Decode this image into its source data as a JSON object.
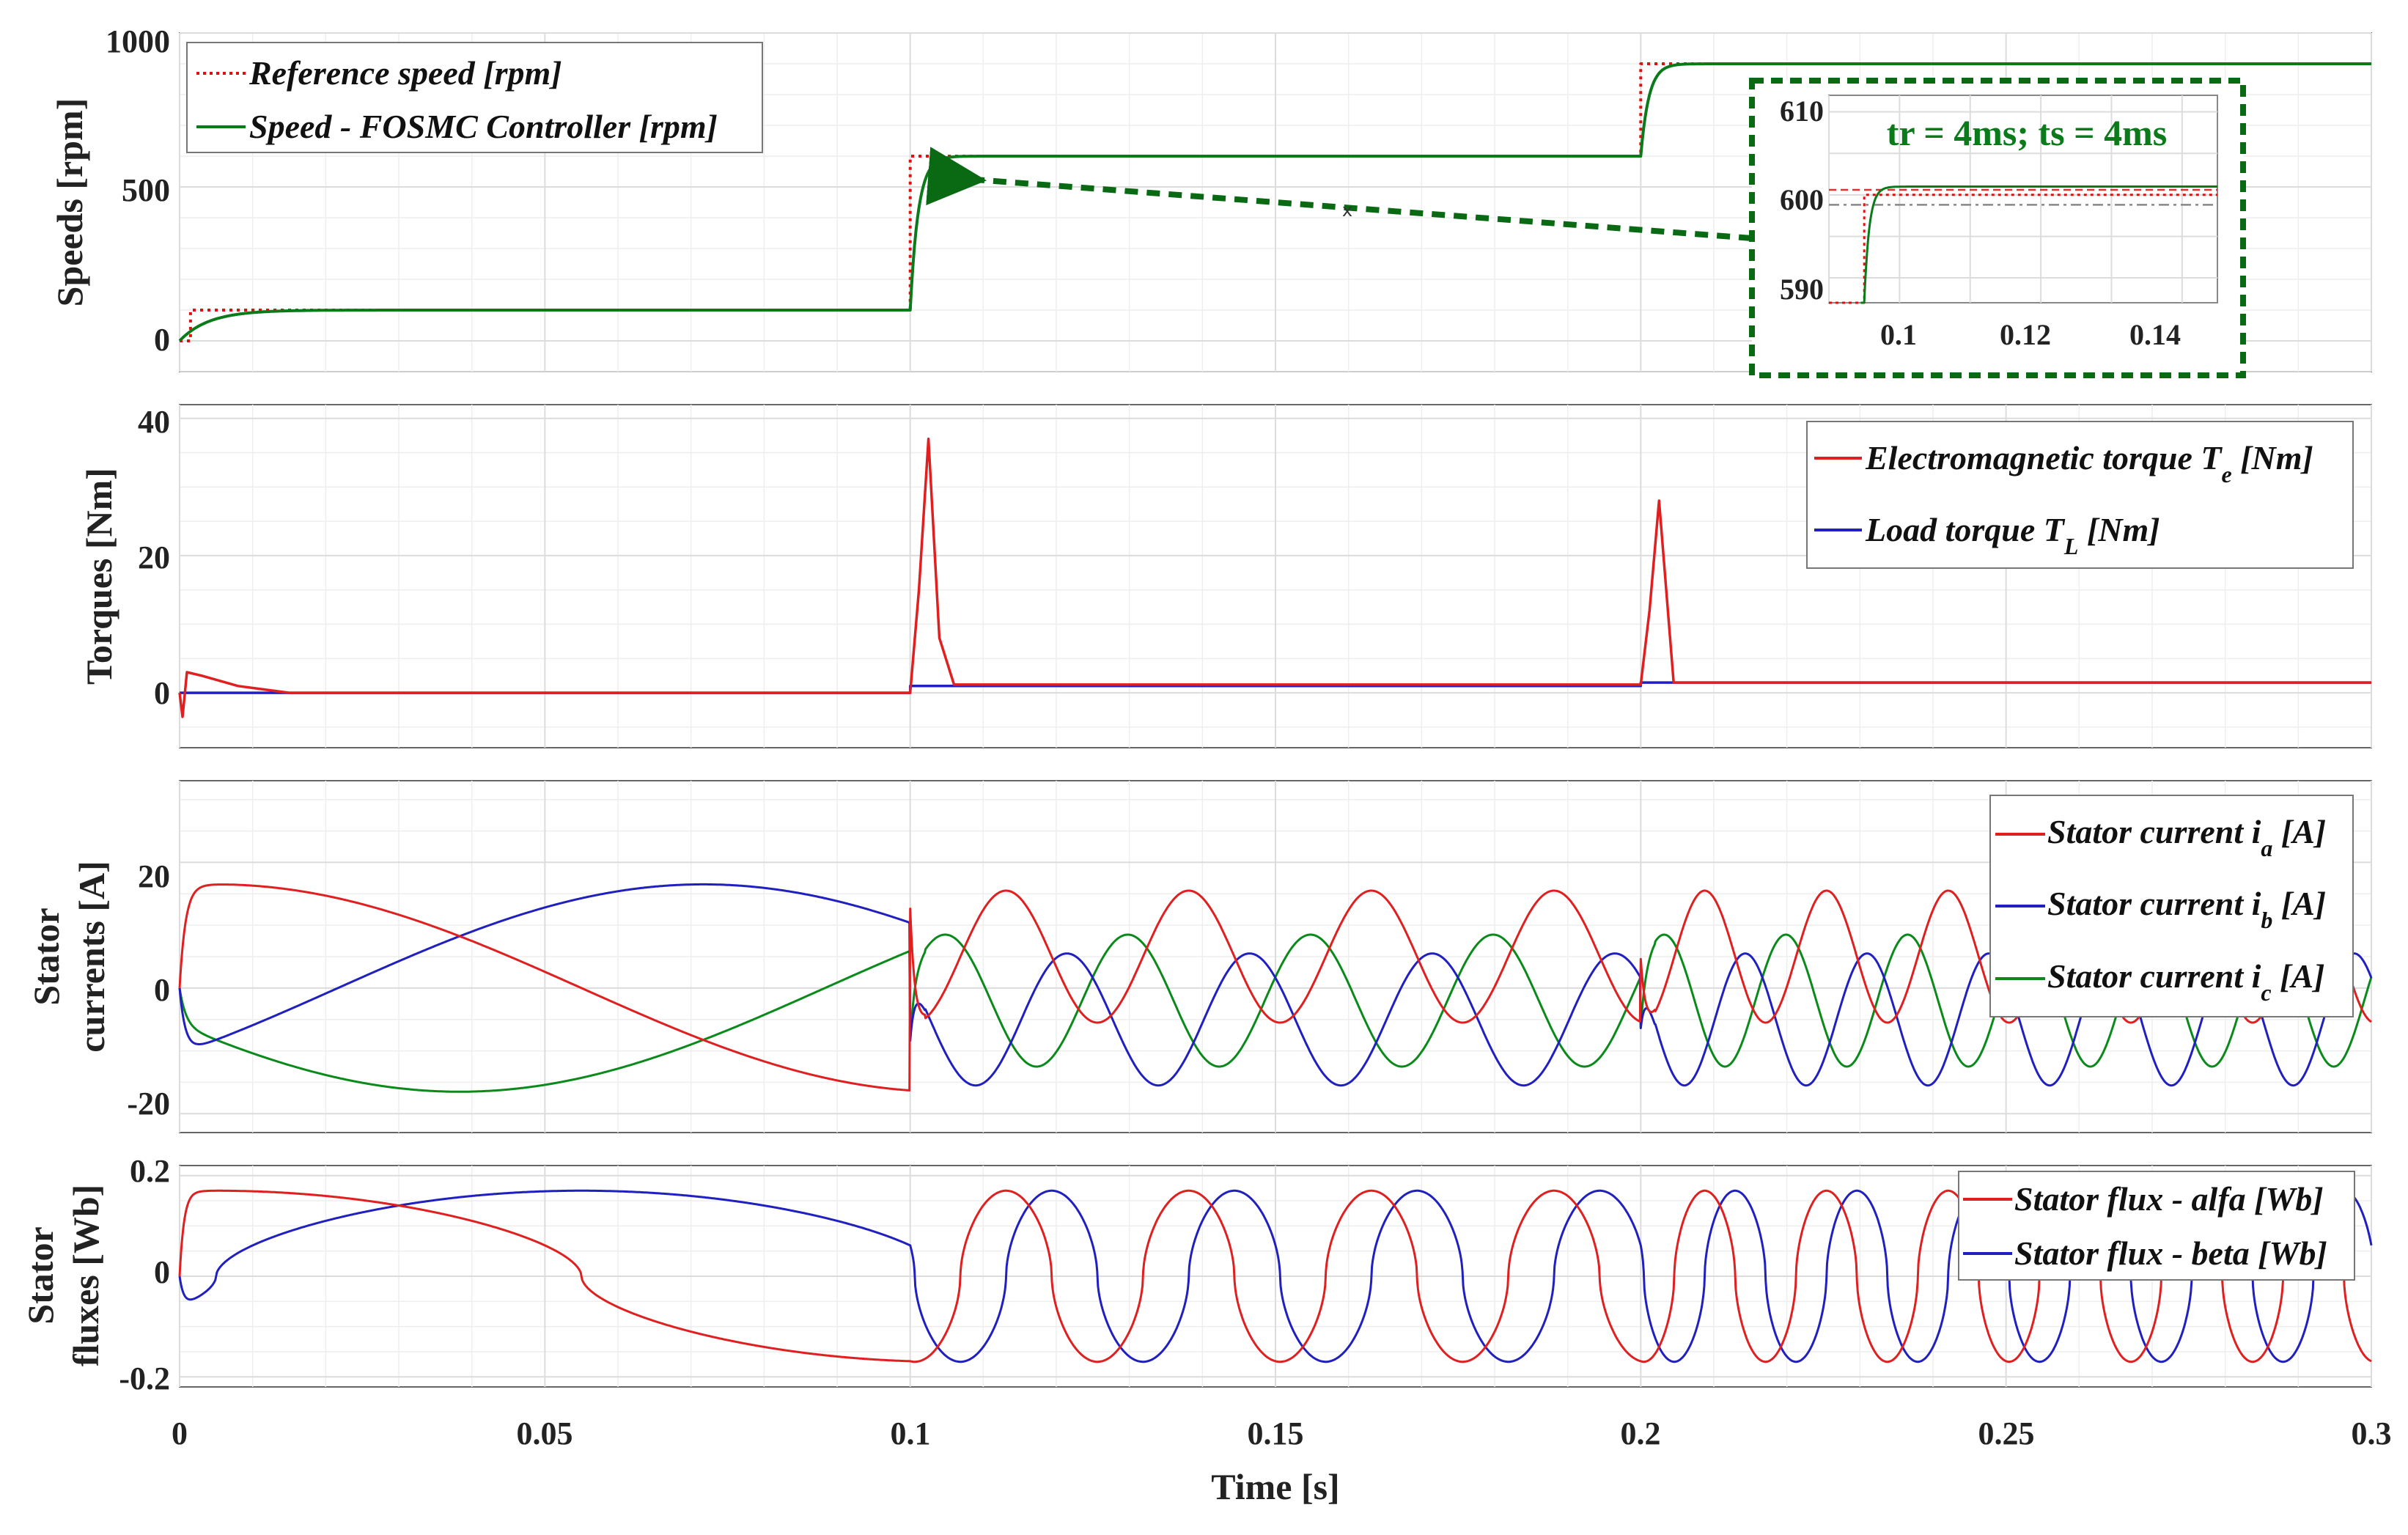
{
  "colors": {
    "reference": "#e01010",
    "fosmc": "#0a7a1a",
    "torque_e": "#e02020",
    "torque_l": "#2020c0",
    "ia": "#e02020",
    "ib": "#2020c0",
    "ic": "#0a8a1a",
    "flux_alfa": "#e02020",
    "flux_beta": "#2020c0",
    "annotation": "#0a6a14",
    "grid": "#dcdcdc"
  },
  "chart_data": [
    {
      "type": "line",
      "ylabel": "Speeds [rpm]",
      "ylim": [
        -100,
        1000
      ],
      "yticks": [
        "0",
        "500",
        "1000"
      ],
      "xlim": [
        0,
        0.3
      ],
      "series": [
        {
          "name": "Reference speed [rpm]",
          "style": "dotted",
          "x": [
            0,
            0.0015,
            0.0015,
            0.1,
            0.1,
            0.2,
            0.2,
            0.3
          ],
          "y": [
            0,
            0,
            100,
            100,
            600,
            600,
            900,
            900
          ]
        },
        {
          "name": "Speed - FOSMC Controller [rpm]",
          "style": "solid",
          "x": [
            0,
            0.004,
            0.012,
            0.02,
            0.1,
            0.104,
            0.2,
            0.204,
            0.3
          ],
          "y": [
            0,
            50,
            95,
            100,
            100,
            600,
            600,
            900,
            900
          ]
        }
      ],
      "legend": "top-left",
      "inset": {
        "title": "tr = 4ms; ts = 4ms",
        "xticks": [
          "0.1",
          "0.12",
          "0.14"
        ],
        "yticks": [
          "590",
          "600",
          "610"
        ],
        "xlim": [
          0.095,
          0.15
        ],
        "ylim": [
          587,
          612
        ]
      }
    },
    {
      "type": "line",
      "ylabel": "Torques [Nm]",
      "ylim": [
        -8,
        42
      ],
      "yticks": [
        "0",
        "20",
        "40"
      ],
      "xlim": [
        0,
        0.3
      ],
      "series": [
        {
          "name_main": "Electromagnetic torque T",
          "name_sub": "e",
          "name_end": " [Nm]",
          "x": [
            0,
            0.0004,
            0.001,
            0.003,
            0.008,
            0.015,
            0.1,
            0.1012,
            0.1025,
            0.104,
            0.106,
            0.2,
            0.2012,
            0.2025,
            0.2045,
            0.3
          ],
          "y": [
            0,
            -3.5,
            3,
            2.5,
            1,
            0,
            0,
            15,
            37,
            8,
            1.2,
            1.2,
            12,
            28,
            1.5,
            1.5
          ]
        },
        {
          "name_main": "Load torque T",
          "name_sub": "L",
          "name_end": " [Nm]",
          "x": [
            0,
            0.1,
            0.1,
            0.2,
            0.2,
            0.3
          ],
          "y": [
            0,
            0,
            1,
            1,
            1.5,
            1.5
          ]
        }
      ],
      "legend": "top-right"
    },
    {
      "type": "line",
      "ylabel": "Stator currents [A]",
      "ylim": [
        -23,
        33
      ],
      "yticks": [
        "-20",
        "0",
        "20"
      ],
      "xlim": [
        0,
        0.3
      ],
      "series": [
        {
          "name_main": "Stator current i",
          "name_sub": "a",
          "name_end": " [A]"
        },
        {
          "name_main": "Stator current i",
          "name_sub": "b",
          "name_end": " [A]"
        },
        {
          "name_main": "Stator current i",
          "name_sub": "c",
          "name_end": " [A]"
        }
      ],
      "legend": "top-right"
    },
    {
      "type": "line",
      "ylabel": "Stator fluxes [Wb]",
      "ylim": [
        -0.22,
        0.22
      ],
      "yticks": [
        "-0.2",
        "0",
        "0.2"
      ],
      "xlim": [
        0,
        0.3
      ],
      "xticks": [
        "0",
        "0.05",
        "0.1",
        "0.15",
        "0.2",
        "0.25",
        "0.3"
      ],
      "xlabel": "Time [s]",
      "series": [
        {
          "name": "Stator flux - alfa [Wb]"
        },
        {
          "name": "Stator flux - beta [Wb]"
        }
      ],
      "legend": "top-right"
    }
  ]
}
